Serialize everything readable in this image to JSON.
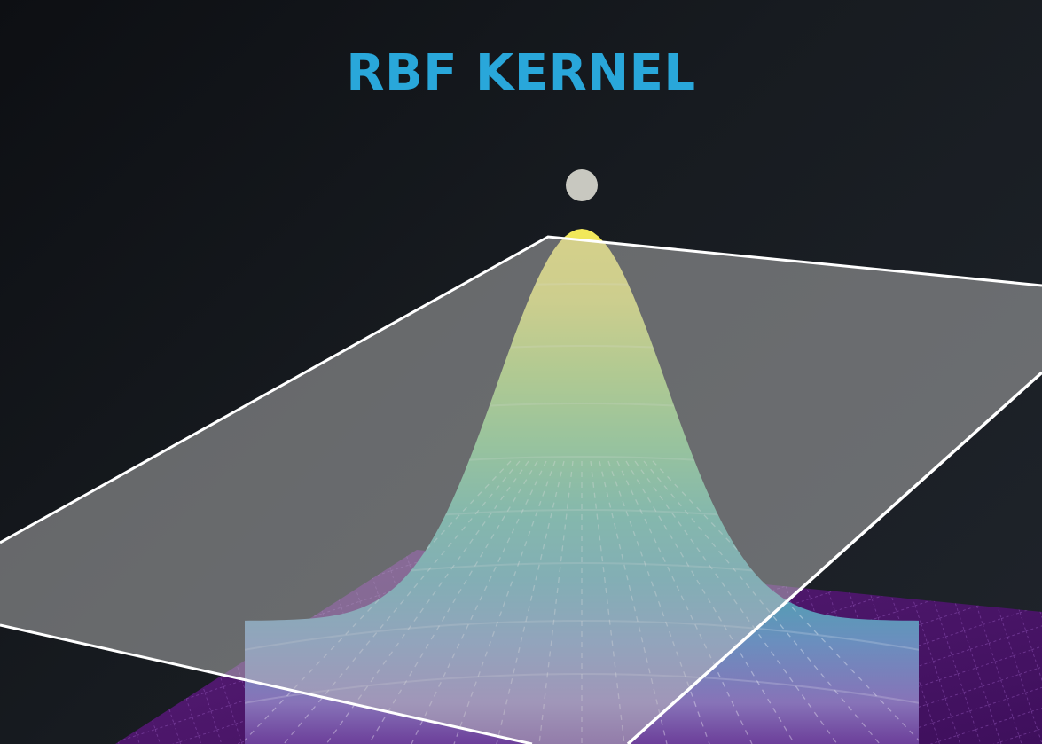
{
  "title": "RBF KERNEL",
  "colors": {
    "title": "#29a7da",
    "background": "#16191d",
    "plane_fill": "#8a8a8a",
    "plane_edge": "#ffffff",
    "data_point": "#c8c8c0",
    "colormap": "viridis"
  },
  "surface": {
    "function": "gaussian",
    "peak_value": 1.0,
    "floor_value": 0.0
  }
}
